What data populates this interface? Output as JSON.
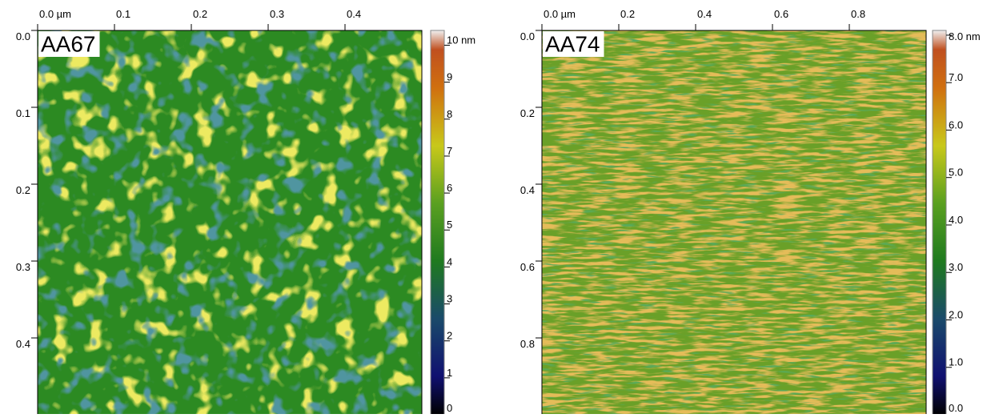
{
  "chart_data": [
    {
      "type": "image",
      "label": "AA67",
      "xlim": [
        0,
        0.5
      ],
      "xticks": [
        {
          "value": 0,
          "label": "0.0 µm"
        },
        0.1,
        0.2,
        0.3,
        0.4
      ],
      "ylim": [
        0,
        0.5
      ],
      "yticks": [
        {
          "value": 0,
          "label": "0.0"
        },
        0.1,
        0.2,
        0.3,
        0.4
      ],
      "zlim": [
        0,
        10.4
      ],
      "zticks": [
        0,
        1,
        2,
        3,
        4,
        5,
        6,
        7,
        8,
        9,
        {
          "value": 10,
          "label": "10 nm"
        }
      ]
    },
    {
      "type": "image",
      "label": "AA74",
      "xlim": [
        0,
        1.0
      ],
      "xticks": [
        {
          "value": 0,
          "label": "0.0 µm"
        },
        0.2,
        0.4,
        0.6,
        0.8
      ],
      "ylim": [
        0,
        1.0
      ],
      "yticks": [
        {
          "value": 0,
          "label": "0.0"
        },
        0.2,
        0.4,
        0.6,
        0.8
      ],
      "zlim": [
        0,
        8.1
      ],
      "zticks": [
        {
          "value": 0,
          "label": "0.0"
        },
        {
          "value": 1,
          "label": "1.0"
        },
        {
          "value": 2,
          "label": "2.0"
        },
        {
          "value": 3,
          "label": "3.0"
        },
        {
          "value": 4,
          "label": "4.0"
        },
        {
          "value": 5,
          "label": "5.0"
        },
        {
          "value": 6,
          "label": "6.0"
        },
        {
          "value": 7,
          "label": "7.0"
        },
        {
          "value": 8,
          "label": "8.0 nm"
        }
      ]
    }
  ]
}
